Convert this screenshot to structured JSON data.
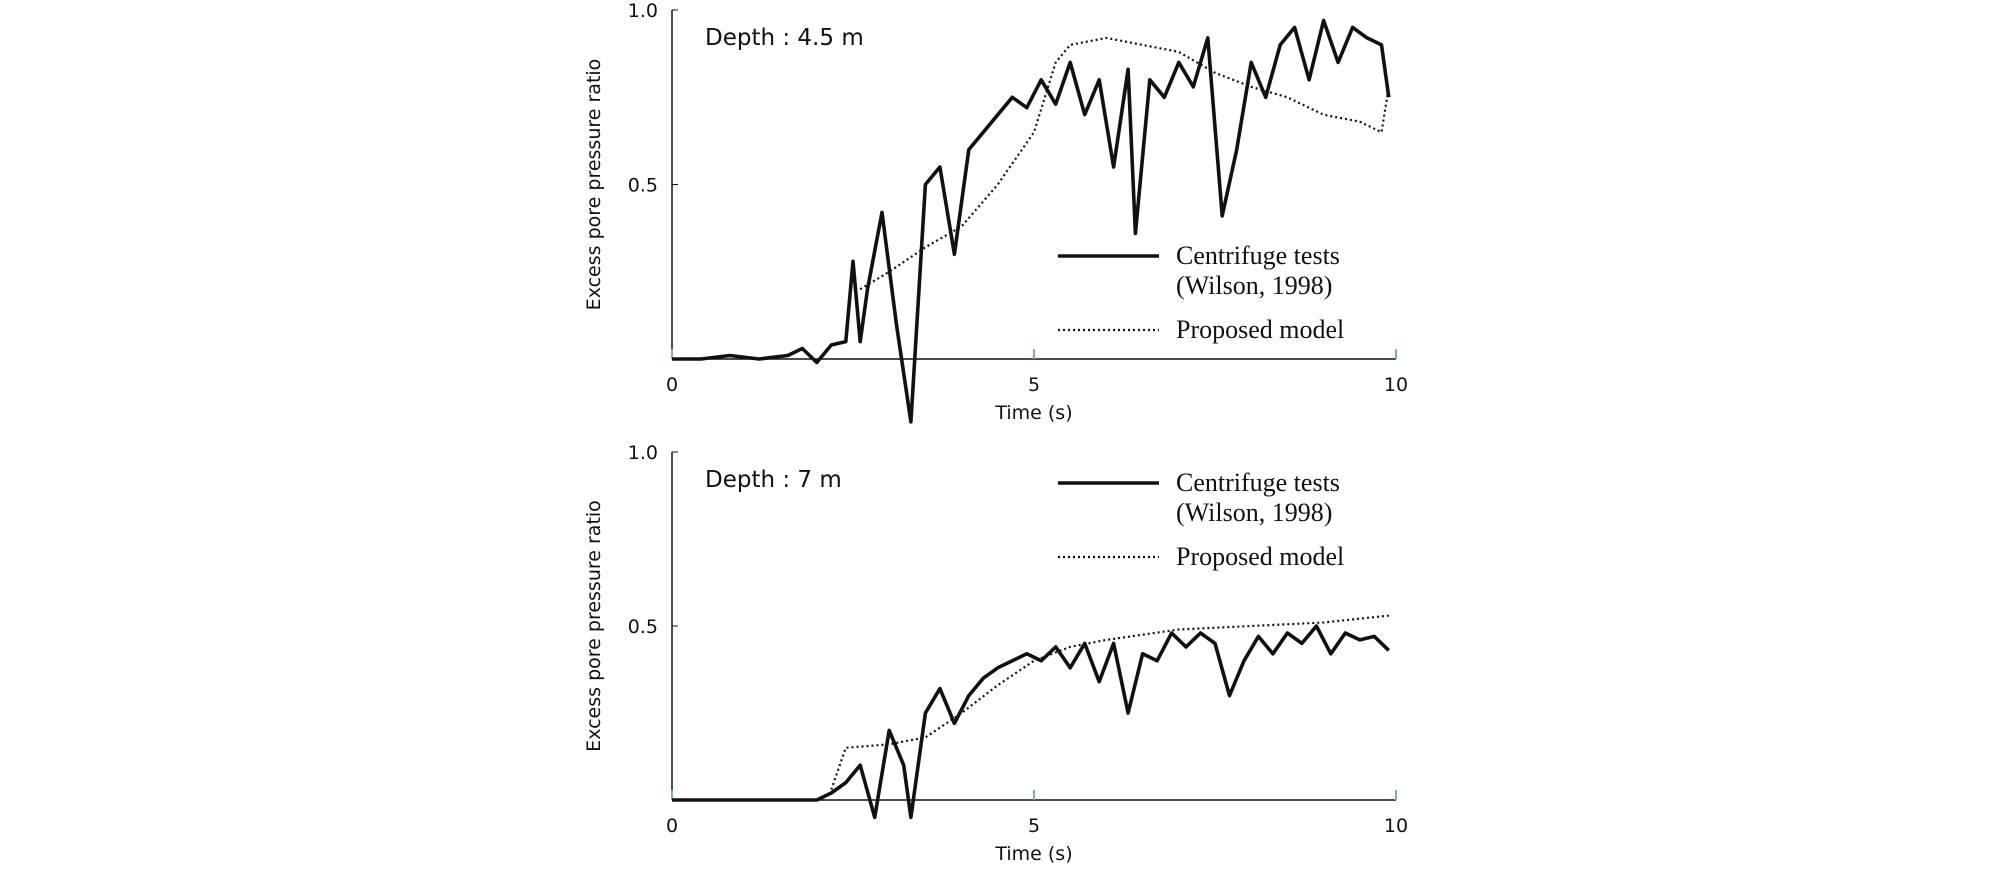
{
  "chart_data": [
    {
      "type": "line",
      "annotation": "Depth : 4.5 m",
      "xlabel": "Time (s)",
      "ylabel": "Excess pore pressure ratio",
      "xlim": [
        0,
        10
      ],
      "ylim": [
        0,
        1
      ],
      "xticks": [
        0,
        5,
        10
      ],
      "yticks": [
        0.5,
        {
          "value": 1,
          "label": "1.0"
        }
      ],
      "series": [
        {
          "name": "Centrifuge tests\n(Wilson, 1998)",
          "color": "#111111",
          "style": "solid",
          "x": [
            0,
            0.4,
            0.8,
            1.2,
            1.6,
            1.8,
            2.0,
            2.2,
            2.4,
            2.5,
            2.6,
            2.7,
            2.9,
            3.1,
            3.3,
            3.5,
            3.7,
            3.9,
            4.1,
            4.3,
            4.5,
            4.7,
            4.9,
            5.1,
            5.3,
            5.5,
            5.7,
            5.9,
            6.1,
            6.3,
            6.4,
            6.6,
            6.8,
            7.0,
            7.2,
            7.4,
            7.6,
            7.8,
            8.0,
            8.2,
            8.4,
            8.6,
            8.8,
            9.0,
            9.2,
            9.4,
            9.6,
            9.8,
            9.9
          ],
          "values": [
            0.0,
            0.0,
            0.01,
            0.0,
            0.01,
            0.03,
            -0.01,
            0.04,
            0.05,
            0.28,
            0.05,
            0.2,
            0.42,
            0.1,
            -0.18,
            0.5,
            0.55,
            0.3,
            0.6,
            0.65,
            0.7,
            0.75,
            0.72,
            0.8,
            0.73,
            0.85,
            0.7,
            0.8,
            0.55,
            0.83,
            0.36,
            0.8,
            0.75,
            0.85,
            0.78,
            0.92,
            0.41,
            0.6,
            0.85,
            0.75,
            0.9,
            0.95,
            0.8,
            0.97,
            0.85,
            0.95,
            0.92,
            0.9,
            0.75
          ]
        },
        {
          "name": "Proposed model",
          "color": "#111111",
          "style": "dotted",
          "x": [
            2.6,
            3.0,
            3.5,
            4.0,
            4.5,
            5.0,
            5.3,
            5.5,
            6.0,
            6.5,
            7.0,
            7.5,
            8.0,
            8.5,
            9.0,
            9.5,
            9.8,
            9.9
          ],
          "values": [
            0.2,
            0.25,
            0.32,
            0.38,
            0.5,
            0.65,
            0.85,
            0.9,
            0.92,
            0.9,
            0.88,
            0.82,
            0.78,
            0.75,
            0.7,
            0.68,
            0.65,
            0.78
          ]
        }
      ]
    },
    {
      "type": "line",
      "annotation": "Depth : 7 m",
      "xlabel": "Time (s)",
      "ylabel": "Excess pore pressure ratio",
      "xlim": [
        0,
        10
      ],
      "ylim": [
        0,
        1
      ],
      "xticks": [
        0,
        5,
        10
      ],
      "yticks": [
        0.5,
        {
          "value": 1,
          "label": "1.0"
        }
      ],
      "series": [
        {
          "name": "Centrifuge tests\n(Wilson, 1998)",
          "color": "#111111",
          "style": "solid",
          "x": [
            0,
            0.4,
            0.8,
            1.2,
            1.6,
            2.0,
            2.2,
            2.4,
            2.6,
            2.8,
            3.0,
            3.2,
            3.3,
            3.5,
            3.7,
            3.9,
            4.1,
            4.3,
            4.5,
            4.7,
            4.9,
            5.1,
            5.3,
            5.5,
            5.7,
            5.9,
            6.1,
            6.3,
            6.5,
            6.7,
            6.9,
            7.1,
            7.3,
            7.5,
            7.7,
            7.9,
            8.1,
            8.3,
            8.5,
            8.7,
            8.9,
            9.1,
            9.3,
            9.5,
            9.7,
            9.9
          ],
          "values": [
            0.0,
            0.0,
            0.0,
            0.0,
            0.0,
            0.0,
            0.02,
            0.05,
            0.1,
            -0.05,
            0.2,
            0.1,
            -0.05,
            0.25,
            0.32,
            0.22,
            0.3,
            0.35,
            0.38,
            0.4,
            0.42,
            0.4,
            0.44,
            0.38,
            0.45,
            0.34,
            0.45,
            0.25,
            0.42,
            0.4,
            0.48,
            0.44,
            0.48,
            0.45,
            0.3,
            0.4,
            0.47,
            0.42,
            0.48,
            0.45,
            0.5,
            0.42,
            0.48,
            0.46,
            0.47,
            0.43
          ]
        },
        {
          "name": "Proposed model",
          "color": "#111111",
          "style": "dotted",
          "x": [
            2.2,
            2.4,
            3.0,
            3.5,
            4.0,
            4.5,
            5.0,
            5.5,
            6.0,
            7.0,
            8.0,
            9.0,
            9.9
          ],
          "values": [
            0.03,
            0.15,
            0.16,
            0.18,
            0.25,
            0.33,
            0.4,
            0.44,
            0.46,
            0.49,
            0.5,
            0.51,
            0.53
          ]
        }
      ]
    }
  ]
}
